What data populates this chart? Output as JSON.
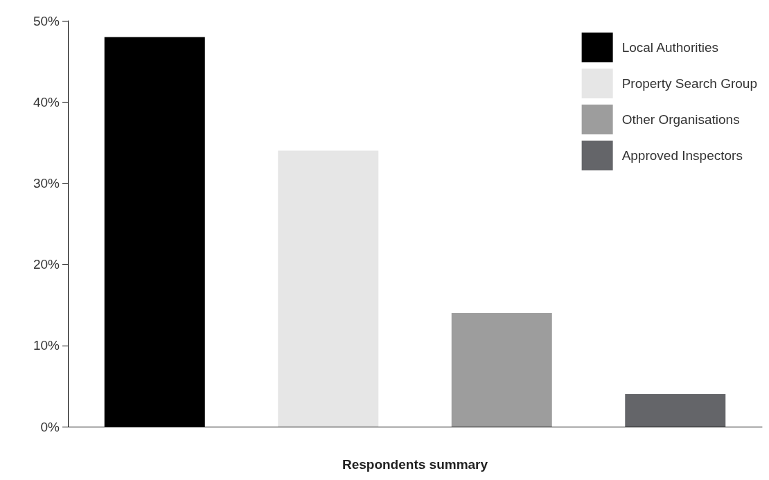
{
  "chart_data": {
    "type": "bar",
    "xlabel": "Respondents summary",
    "categories": [
      null,
      null,
      null,
      null
    ],
    "series": [
      {
        "name": "Local Authorities",
        "color": "#000000",
        "values": [
          48,
          null,
          null,
          null
        ]
      },
      {
        "name": "Property Search Group",
        "color": "#e6e6e6",
        "values": [
          null,
          34,
          null,
          null
        ]
      },
      {
        "name": "Other Organisations",
        "color": "#9d9d9d",
        "values": [
          null,
          null,
          14,
          null
        ]
      },
      {
        "name": "Approved Inspectors",
        "color": "#646569",
        "values": [
          null,
          null,
          null,
          4
        ]
      }
    ],
    "ylim": [
      0,
      50
    ],
    "yticks": [
      {
        "value": 0,
        "label": "0%"
      },
      {
        "value": 10,
        "label": "10%"
      },
      {
        "value": 20,
        "label": "20%"
      },
      {
        "value": 30,
        "label": "30%"
      },
      {
        "value": 40,
        "label": "40%"
      },
      {
        "value": 50,
        "label": "50%"
      }
    ],
    "grid": false,
    "legend": "top right"
  }
}
